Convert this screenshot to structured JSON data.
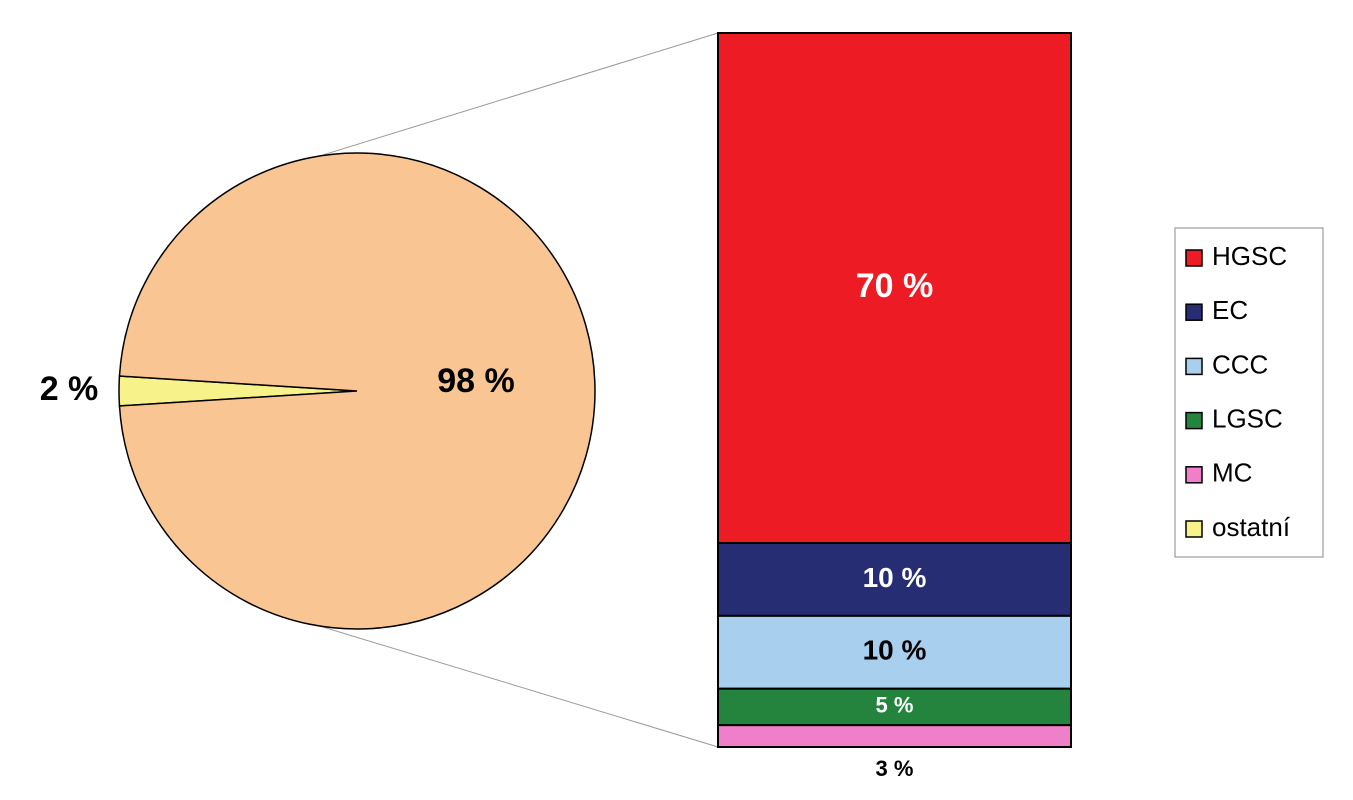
{
  "chart_data": {
    "type": "bar-of-pie",
    "pie": {
      "names": [
        "ostatní",
        null
      ],
      "values": [
        2,
        98
      ],
      "value_labels": [
        "2 %",
        "98 %"
      ],
      "colors": [
        "#f7f38a",
        "#f9c592"
      ]
    },
    "series": [
      {
        "name": "HGSC",
        "color": "#ed1c24",
        "values": [
          70
        ],
        "value_labels": [
          "70 %"
        ]
      },
      {
        "name": "EC",
        "color": "#262d73",
        "values": [
          10
        ],
        "value_labels": [
          "10 %"
        ]
      },
      {
        "name": "CCC",
        "color": "#a9cfee",
        "values": [
          10
        ],
        "value_labels": [
          "10 %"
        ]
      },
      {
        "name": "LGSC",
        "color": "#24843e",
        "values": [
          5
        ],
        "value_labels": [
          "5 %"
        ]
      },
      {
        "name": "MC",
        "color": "#ef7fc8",
        "values": [
          3
        ],
        "value_labels": [
          "3 %"
        ]
      }
    ]
  }
}
